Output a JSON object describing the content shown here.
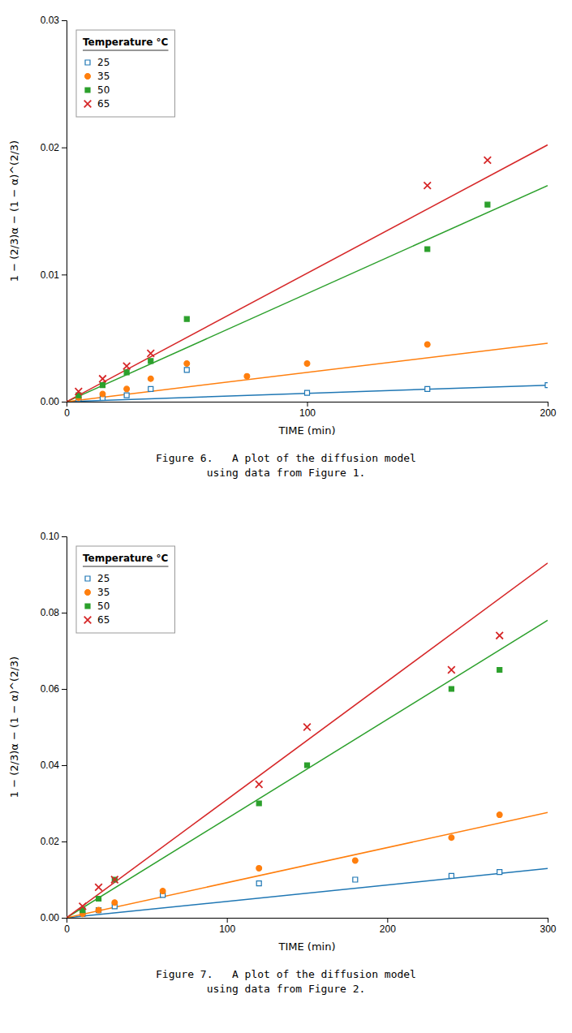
{
  "chart_data": [
    {
      "type": "scatter",
      "title": "Figure 6.   A plot of the diffusion model",
      "subtitle": "using data from Figure 1.",
      "x_label": "TIME (min)",
      "y_label": "1 − (2/3)α − (1 − α)^(2/3)",
      "legend_title": "Temperature °C",
      "legend": "upper left",
      "xlim": [
        0,
        200
      ],
      "xticks": [
        0,
        100,
        200
      ],
      "ylim": [
        0.0,
        0.03
      ],
      "yticks": [
        {
          "value": 0,
          "label": "0.00"
        },
        0.01,
        0.02,
        0.03
      ],
      "series": [
        {
          "name": "25",
          "marker": "square-open",
          "x": [
            5,
            15,
            25,
            35,
            50,
            100,
            150,
            200
          ],
          "values": [
            0.0002,
            0.0003,
            0.0005,
            0.001,
            0.0025,
            0.0007,
            0.001,
            0.0013
          ],
          "fit_x": [
            0,
            200
          ],
          "fit_values": [
            0,
            0.0013
          ]
        },
        {
          "name": "35",
          "marker": "circle",
          "x": [
            5,
            15,
            25,
            35,
            50,
            75,
            100,
            150
          ],
          "values": [
            0.0003,
            0.0006,
            0.001,
            0.0018,
            0.003,
            0.002,
            0.003,
            0.0045
          ],
          "fit_x": [
            0,
            200
          ],
          "fit_values": [
            0,
            0.0046
          ]
        },
        {
          "name": "50",
          "marker": "square",
          "x": [
            5,
            15,
            25,
            35,
            50,
            150,
            175
          ],
          "values": [
            0.0005,
            0.0013,
            0.0023,
            0.0032,
            0.0065,
            0.012,
            0.0155
          ],
          "fit_x": [
            0,
            200
          ],
          "fit_values": [
            0,
            0.017
          ]
        },
        {
          "name": "65",
          "marker": "x",
          "x": [
            5,
            15,
            25,
            35,
            150,
            175
          ],
          "values": [
            0.0008,
            0.0018,
            0.0028,
            0.0038,
            0.017,
            0.019
          ],
          "fit_x": [
            0,
            200
          ],
          "fit_values": [
            0,
            0.0202
          ]
        }
      ]
    },
    {
      "type": "scatter",
      "title": "Figure 7.   A plot of the diffusion model",
      "subtitle": "using data from Figure 2.",
      "x_label": "TIME (min)",
      "y_label": "1 − (2/3)α − (1 − α)^(2/3)",
      "legend_title": "Temperature °C",
      "legend": "upper left",
      "xlim": [
        0,
        300
      ],
      "xticks": [
        0,
        100,
        200,
        300
      ],
      "ylim": [
        0.0,
        0.1
      ],
      "yticks": [
        {
          "value": 0,
          "label": "0.00"
        },
        0.02,
        0.04,
        0.06,
        0.08,
        {
          "value": 0.1,
          "label": "0.10"
        }
      ],
      "series": [
        {
          "name": "25",
          "marker": "square-open",
          "x": [
            10,
            20,
            30,
            60,
            120,
            180,
            240,
            270
          ],
          "values": [
            0.001,
            0.002,
            0.003,
            0.006,
            0.009,
            0.01,
            0.011,
            0.012
          ],
          "fit_x": [
            0,
            300
          ],
          "fit_values": [
            0,
            0.0129
          ]
        },
        {
          "name": "35",
          "marker": "circle",
          "x": [
            10,
            20,
            30,
            60,
            120,
            180,
            240,
            270
          ],
          "values": [
            0.001,
            0.002,
            0.004,
            0.007,
            0.013,
            0.015,
            0.021,
            0.027
          ],
          "fit_x": [
            0,
            300
          ],
          "fit_values": [
            0,
            0.0276
          ]
        },
        {
          "name": "50",
          "marker": "square",
          "x": [
            10,
            20,
            30,
            120,
            150,
            240,
            270
          ],
          "values": [
            0.002,
            0.005,
            0.01,
            0.03,
            0.04,
            0.06,
            0.065
          ],
          "fit_x": [
            0,
            300
          ],
          "fit_values": [
            0,
            0.078
          ]
        },
        {
          "name": "65",
          "marker": "x",
          "x": [
            10,
            20,
            30,
            120,
            150,
            240,
            270
          ],
          "values": [
            0.003,
            0.008,
            0.01,
            0.035,
            0.05,
            0.065,
            0.074
          ],
          "fit_x": [
            0,
            300
          ],
          "fit_values": [
            0,
            0.093
          ]
        }
      ]
    }
  ]
}
